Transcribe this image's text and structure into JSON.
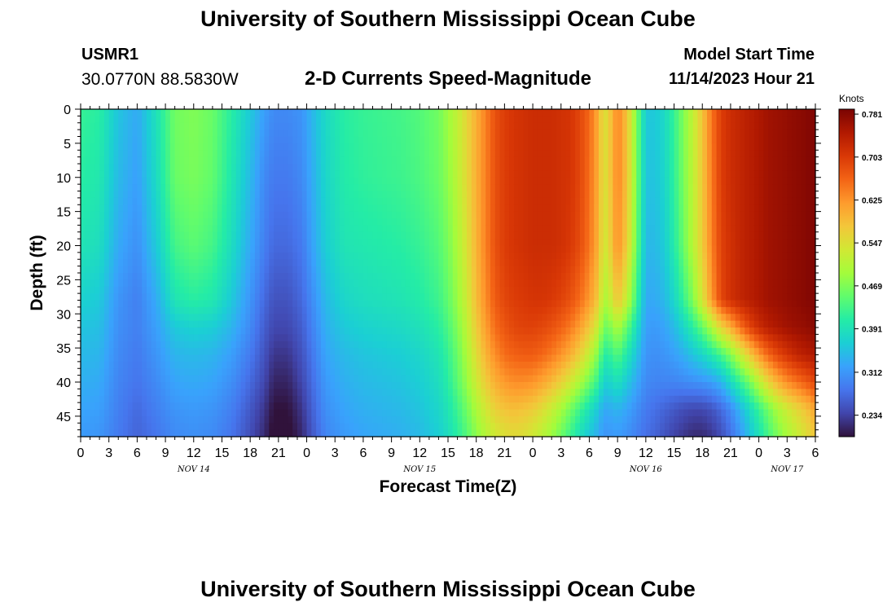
{
  "header": {
    "title": "University of Southern Mississippi Ocean Cube",
    "station_id": "USMR1",
    "coordinates": "30.0770N  88.5830W",
    "subtitle": "2-D Currents Speed-Magnitude",
    "model_start_label": "Model Start Time",
    "model_start_value": "11/14/2023 Hour 21"
  },
  "footer": {
    "title": "University of Southern Mississippi Ocean Cube"
  },
  "chart_data": {
    "type": "heatmap",
    "title": "2-D Currents Speed-Magnitude",
    "xlabel": "Forecast Time(Z)",
    "ylabel": "Depth (ft)",
    "x_tick_labels": [
      "0",
      "3",
      "6",
      "9",
      "12",
      "15",
      "18",
      "21",
      "0",
      "3",
      "6",
      "9",
      "12",
      "15",
      "18",
      "21",
      "0",
      "3",
      "6",
      "9",
      "12",
      "15",
      "18",
      "21",
      "0",
      "3",
      "6"
    ],
    "x_hours": [
      0,
      3,
      6,
      9,
      12,
      15,
      18,
      21,
      24,
      27,
      30,
      33,
      36,
      39,
      42,
      45,
      48,
      51,
      54,
      57,
      60,
      63,
      66,
      69,
      72,
      75,
      78
    ],
    "x_range_hours": [
      0,
      78
    ],
    "date_labels": [
      {
        "label": "NOV 14",
        "hour": 12
      },
      {
        "label": "NOV 15",
        "hour": 36
      },
      {
        "label": "NOV 16",
        "hour": 60
      },
      {
        "label": "NOV 17",
        "hour": 75
      }
    ],
    "y_tick_labels": [
      "0",
      "5",
      "10",
      "15",
      "20",
      "25",
      "30",
      "35",
      "40",
      "45"
    ],
    "y_ticks_ft": [
      0,
      5,
      10,
      15,
      20,
      25,
      30,
      35,
      40,
      45
    ],
    "y_range_ft": [
      0,
      48
    ],
    "y_inverted": true,
    "colorbar": {
      "unit": "Knots",
      "tick_labels": [
        "0.781",
        "0.703",
        "0.625",
        "0.547",
        "0.469",
        "0.391",
        "0.312",
        "0.234"
      ],
      "min": 0.195,
      "max": 0.79,
      "colormap": [
        "#30123b",
        "#4145ab",
        "#4675ed",
        "#39a2fc",
        "#1bcfd4",
        "#24eca6",
        "#61fc6c",
        "#a4fc3b",
        "#d1e834",
        "#f3c63a",
        "#fe9b2d",
        "#f36315",
        "#d93806",
        "#b11901",
        "#7a0403"
      ]
    },
    "depth_profiles_ft": [
      0,
      10,
      20,
      28,
      32,
      36,
      40,
      44,
      48
    ],
    "profile_hours": [
      0,
      2,
      4,
      6,
      8,
      10,
      12,
      14,
      16,
      18,
      19.5,
      20.5,
      22,
      23.5,
      24.5,
      26,
      28,
      30,
      32,
      34,
      36,
      38,
      39,
      40,
      41,
      42,
      43,
      44,
      45,
      46,
      47,
      48,
      49,
      50,
      51,
      52,
      53,
      54,
      55,
      55.5,
      56,
      57,
      58,
      60,
      61,
      62,
      63,
      64,
      65,
      66,
      67,
      68,
      69,
      70,
      71,
      72,
      73,
      74,
      75,
      76,
      77,
      78
    ],
    "values_knots": [
      [
        0.42,
        0.41,
        0.355,
        0.33,
        0.39,
        0.46,
        0.47,
        0.455,
        0.41,
        0.36,
        0.32,
        0.3,
        0.3,
        0.31,
        0.34,
        0.38,
        0.41,
        0.42,
        0.425,
        0.43,
        0.44,
        0.46,
        0.49,
        0.52,
        0.56,
        0.6,
        0.64,
        0.68,
        0.7,
        0.71,
        0.715,
        0.72,
        0.72,
        0.72,
        0.715,
        0.71,
        0.69,
        0.66,
        0.6,
        0.54,
        0.56,
        0.64,
        0.58,
        0.36,
        0.36,
        0.38,
        0.42,
        0.47,
        0.52,
        0.58,
        0.65,
        0.7,
        0.72,
        0.73,
        0.74,
        0.75,
        0.76,
        0.765,
        0.77,
        0.775,
        0.78,
        0.785
      ],
      [
        0.41,
        0.4,
        0.345,
        0.32,
        0.38,
        0.455,
        0.465,
        0.45,
        0.4,
        0.345,
        0.3,
        0.285,
        0.285,
        0.3,
        0.33,
        0.375,
        0.405,
        0.415,
        0.42,
        0.425,
        0.435,
        0.455,
        0.48,
        0.515,
        0.555,
        0.6,
        0.64,
        0.68,
        0.7,
        0.71,
        0.715,
        0.72,
        0.72,
        0.72,
        0.715,
        0.71,
        0.69,
        0.655,
        0.6,
        0.54,
        0.56,
        0.64,
        0.58,
        0.355,
        0.355,
        0.375,
        0.415,
        0.465,
        0.515,
        0.575,
        0.645,
        0.7,
        0.72,
        0.73,
        0.74,
        0.75,
        0.76,
        0.765,
        0.77,
        0.775,
        0.78,
        0.785
      ],
      [
        0.395,
        0.385,
        0.33,
        0.305,
        0.36,
        0.43,
        0.445,
        0.43,
        0.385,
        0.33,
        0.29,
        0.27,
        0.27,
        0.285,
        0.32,
        0.365,
        0.395,
        0.4,
        0.405,
        0.41,
        0.42,
        0.44,
        0.465,
        0.5,
        0.545,
        0.595,
        0.64,
        0.68,
        0.7,
        0.71,
        0.715,
        0.72,
        0.72,
        0.72,
        0.715,
        0.705,
        0.685,
        0.65,
        0.595,
        0.53,
        0.55,
        0.63,
        0.57,
        0.345,
        0.345,
        0.365,
        0.405,
        0.455,
        0.51,
        0.57,
        0.64,
        0.695,
        0.715,
        0.73,
        0.74,
        0.75,
        0.76,
        0.765,
        0.77,
        0.775,
        0.78,
        0.785
      ],
      [
        0.37,
        0.36,
        0.31,
        0.29,
        0.33,
        0.395,
        0.41,
        0.4,
        0.36,
        0.31,
        0.27,
        0.25,
        0.25,
        0.27,
        0.3,
        0.345,
        0.375,
        0.385,
        0.39,
        0.395,
        0.405,
        0.425,
        0.45,
        0.485,
        0.53,
        0.585,
        0.63,
        0.67,
        0.69,
        0.7,
        0.705,
        0.71,
        0.71,
        0.705,
        0.695,
        0.68,
        0.655,
        0.62,
        0.57,
        0.5,
        0.51,
        0.58,
        0.52,
        0.33,
        0.33,
        0.345,
        0.375,
        0.42,
        0.47,
        0.54,
        0.62,
        0.69,
        0.715,
        0.73,
        0.74,
        0.75,
        0.76,
        0.765,
        0.77,
        0.775,
        0.78,
        0.785
      ],
      [
        0.355,
        0.35,
        0.305,
        0.29,
        0.32,
        0.36,
        0.37,
        0.365,
        0.34,
        0.3,
        0.26,
        0.24,
        0.24,
        0.26,
        0.29,
        0.335,
        0.36,
        0.37,
        0.375,
        0.38,
        0.39,
        0.41,
        0.435,
        0.47,
        0.515,
        0.57,
        0.615,
        0.655,
        0.675,
        0.69,
        0.695,
        0.695,
        0.69,
        0.68,
        0.665,
        0.645,
        0.615,
        0.575,
        0.52,
        0.46,
        0.46,
        0.5,
        0.45,
        0.32,
        0.315,
        0.325,
        0.345,
        0.375,
        0.41,
        0.45,
        0.5,
        0.56,
        0.6,
        0.65,
        0.69,
        0.72,
        0.74,
        0.75,
        0.76,
        0.765,
        0.77,
        0.78
      ],
      [
        0.345,
        0.34,
        0.3,
        0.285,
        0.31,
        0.34,
        0.345,
        0.34,
        0.32,
        0.285,
        0.25,
        0.225,
        0.225,
        0.25,
        0.28,
        0.325,
        0.345,
        0.355,
        0.36,
        0.365,
        0.375,
        0.395,
        0.42,
        0.455,
        0.5,
        0.55,
        0.595,
        0.63,
        0.655,
        0.665,
        0.67,
        0.67,
        0.66,
        0.645,
        0.625,
        0.6,
        0.565,
        0.52,
        0.465,
        0.41,
        0.41,
        0.44,
        0.4,
        0.31,
        0.305,
        0.31,
        0.32,
        0.335,
        0.355,
        0.375,
        0.4,
        0.43,
        0.47,
        0.52,
        0.57,
        0.62,
        0.66,
        0.69,
        0.71,
        0.73,
        0.74,
        0.75
      ],
      [
        0.335,
        0.33,
        0.295,
        0.28,
        0.3,
        0.325,
        0.33,
        0.325,
        0.305,
        0.27,
        0.24,
        0.21,
        0.21,
        0.24,
        0.27,
        0.315,
        0.335,
        0.345,
        0.35,
        0.355,
        0.365,
        0.385,
        0.41,
        0.445,
        0.485,
        0.53,
        0.57,
        0.6,
        0.62,
        0.63,
        0.63,
        0.625,
        0.61,
        0.59,
        0.565,
        0.535,
        0.5,
        0.46,
        0.415,
        0.37,
        0.37,
        0.39,
        0.36,
        0.3,
        0.295,
        0.295,
        0.295,
        0.3,
        0.305,
        0.31,
        0.32,
        0.34,
        0.38,
        0.42,
        0.46,
        0.51,
        0.56,
        0.6,
        0.63,
        0.65,
        0.67,
        0.69
      ],
      [
        0.325,
        0.32,
        0.29,
        0.27,
        0.29,
        0.31,
        0.315,
        0.31,
        0.29,
        0.255,
        0.225,
        0.195,
        0.195,
        0.225,
        0.26,
        0.305,
        0.325,
        0.335,
        0.34,
        0.345,
        0.355,
        0.375,
        0.395,
        0.425,
        0.46,
        0.5,
        0.535,
        0.565,
        0.58,
        0.585,
        0.58,
        0.57,
        0.55,
        0.525,
        0.495,
        0.46,
        0.425,
        0.39,
        0.355,
        0.33,
        0.33,
        0.34,
        0.325,
        0.285,
        0.275,
        0.265,
        0.255,
        0.245,
        0.24,
        0.24,
        0.25,
        0.27,
        0.3,
        0.34,
        0.38,
        0.42,
        0.46,
        0.5,
        0.53,
        0.555,
        0.58,
        0.61
      ],
      [
        0.315,
        0.31,
        0.285,
        0.265,
        0.28,
        0.3,
        0.305,
        0.3,
        0.28,
        0.245,
        0.215,
        0.185,
        0.185,
        0.215,
        0.25,
        0.295,
        0.315,
        0.325,
        0.33,
        0.335,
        0.345,
        0.365,
        0.385,
        0.41,
        0.44,
        0.475,
        0.505,
        0.53,
        0.545,
        0.55,
        0.545,
        0.53,
        0.51,
        0.485,
        0.455,
        0.42,
        0.385,
        0.355,
        0.33,
        0.31,
        0.31,
        0.315,
        0.305,
        0.275,
        0.265,
        0.25,
        0.235,
        0.225,
        0.215,
        0.215,
        0.225,
        0.245,
        0.275,
        0.31,
        0.35,
        0.39,
        0.43,
        0.465,
        0.495,
        0.52,
        0.545,
        0.575
      ]
    ]
  }
}
